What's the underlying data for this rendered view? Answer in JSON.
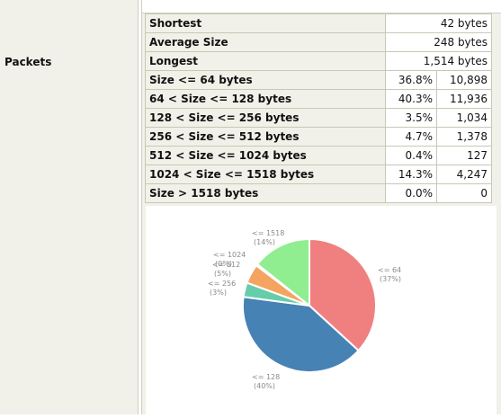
{
  "section_label": "Packets",
  "summary": [
    {
      "label": "Shortest",
      "value": "42 bytes"
    },
    {
      "label": "Average Size",
      "value": "248 bytes"
    },
    {
      "label": "Longest",
      "value": "1,514 bytes"
    }
  ],
  "buckets": [
    {
      "label": "Size <= 64 bytes",
      "pct": "36.8%",
      "count": "10,898"
    },
    {
      "label": "64 < Size <= 128 bytes",
      "pct": "40.3%",
      "count": "11,936"
    },
    {
      "label": "128 < Size <= 256 bytes",
      "pct": "3.5%",
      "count": "1,034"
    },
    {
      "label": "256 < Size <= 512 bytes",
      "pct": "4.7%",
      "count": "1,378"
    },
    {
      "label": "512 < Size <= 1024 bytes",
      "pct": "0.4%",
      "count": "127"
    },
    {
      "label": "1024 < Size <= 1518 bytes",
      "pct": "14.3%",
      "count": "4,247"
    },
    {
      "label": "Size > 1518 bytes",
      "pct": "0.0%",
      "count": "0"
    }
  ],
  "chart_data": {
    "type": "pie",
    "slices": [
      {
        "label": "<= 64",
        "value": 36.8,
        "pct_label": "(37%)",
        "color": "#f08080"
      },
      {
        "label": "<= 128",
        "value": 40.3,
        "pct_label": "(40%)",
        "color": "#4682b4"
      },
      {
        "label": "<= 256",
        "value": 3.5,
        "pct_label": "(3%)",
        "color": "#66cdaa"
      },
      {
        "label": "<= 512",
        "value": 4.7,
        "pct_label": "(5%)",
        "color": "#f4a460"
      },
      {
        "label": "<= 1024",
        "value": 0.4,
        "pct_label": "(0%)",
        "color": "#87cefa"
      },
      {
        "label": "<= 1518",
        "value": 14.3,
        "pct_label": "(14%)",
        "color": "#90ee90"
      }
    ]
  }
}
